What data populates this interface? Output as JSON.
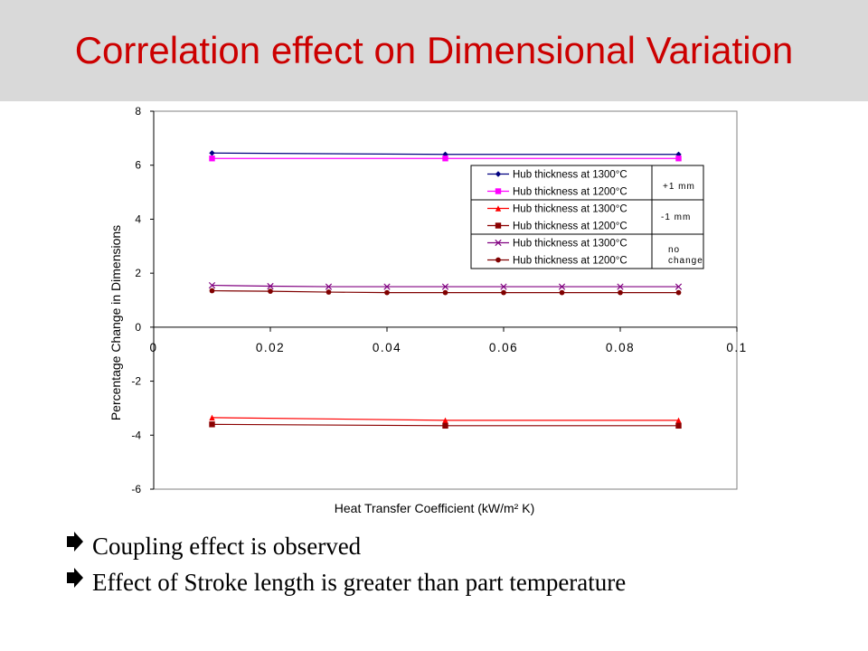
{
  "slide": {
    "title": "Correlation effect on Dimensional Variation",
    "title_color": "#cc0000",
    "header_bg": "#d9d9d9",
    "bullets": [
      {
        "icon": "arrow-bullet-icon",
        "text": "Coupling effect is observed"
      },
      {
        "icon": "arrow-bullet-icon",
        "text": "Effect of Stroke length is greater than part temperature"
      }
    ]
  },
  "chart_data": {
    "type": "line",
    "title": "",
    "xlabel": "Heat Transfer Coefficient (kW/m² K)",
    "ylabel": "Percentage Change in Dimensions",
    "xlim": [
      0,
      0.1
    ],
    "ylim": [
      -6,
      8
    ],
    "xticks": [
      0,
      0.02,
      0.04,
      0.06,
      0.08,
      0.1
    ],
    "xtick_labels": [
      "0",
      "0.02",
      "0.04",
      "0.06",
      "0.08",
      "0.1"
    ],
    "yticks": [
      8,
      6,
      4,
      2,
      0,
      -2,
      -4,
      -6
    ],
    "ytick_labels": [
      "8",
      "6",
      "4",
      "2",
      "0",
      "-2",
      "-4",
      "-6"
    ],
    "grid": false,
    "legend_position": "top-right",
    "series": [
      {
        "name": "Hub thickness at 1300°C",
        "group": "+1 mm",
        "color": "#000080",
        "marker": "diamond",
        "x": [
          0.01,
          0.05,
          0.09
        ],
        "y": [
          6.45,
          6.4,
          6.4
        ]
      },
      {
        "name": "Hub thickness at 1200°C",
        "group": "+1 mm",
        "color": "#ff00ff",
        "marker": "square",
        "x": [
          0.01,
          0.05,
          0.09
        ],
        "y": [
          6.25,
          6.25,
          6.25
        ]
      },
      {
        "name": "Hub thickness at 1300°C",
        "group": "-1 mm",
        "color": "#ff0000",
        "marker": "triangle",
        "x": [
          0.01,
          0.05,
          0.09
        ],
        "y": [
          -3.35,
          -3.45,
          -3.45
        ]
      },
      {
        "name": "Hub thickness at 1200°C",
        "group": "-1 mm",
        "color": "#8b0000",
        "marker": "square",
        "x": [
          0.01,
          0.05,
          0.09
        ],
        "y": [
          -3.6,
          -3.65,
          -3.65
        ]
      },
      {
        "name": "Hub thickness at 1300°C",
        "group": "no change",
        "color": "#800080",
        "marker": "x",
        "x": [
          0.01,
          0.02,
          0.03,
          0.04,
          0.05,
          0.06,
          0.07,
          0.08,
          0.09
        ],
        "y": [
          1.55,
          1.52,
          1.5,
          1.5,
          1.5,
          1.5,
          1.5,
          1.5,
          1.5
        ]
      },
      {
        "name": "Hub thickness at 1200°C",
        "group": "no change",
        "color": "#800000",
        "marker": "circle",
        "x": [
          0.01,
          0.02,
          0.03,
          0.04,
          0.05,
          0.06,
          0.07,
          0.08,
          0.09
        ],
        "y": [
          1.35,
          1.33,
          1.3,
          1.28,
          1.28,
          1.28,
          1.28,
          1.28,
          1.28
        ]
      }
    ],
    "legend_groups": [
      {
        "label": "+1 mm"
      },
      {
        "label": "-1 mm"
      },
      {
        "label": "no change"
      }
    ]
  }
}
